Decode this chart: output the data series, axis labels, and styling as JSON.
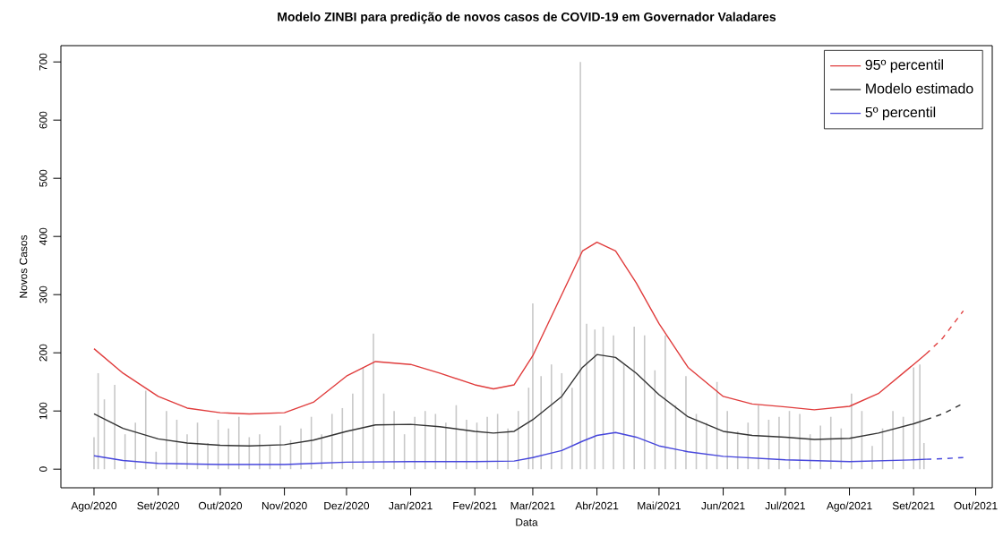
{
  "chart_data": {
    "type": "line",
    "title": "Modelo ZINBI para predição de novos casos de COVID-19 em Governador Valadares",
    "xlabel": "Data",
    "ylabel": "Novos Casos",
    "xlim": [
      "2020-07-16",
      "2021-10-09"
    ],
    "ylim": [
      -32,
      728
    ],
    "xticks": [
      {
        "value": "2020-08-01",
        "label": "Ago/2020"
      },
      {
        "value": "2020-09-01",
        "label": "Set/2020"
      },
      {
        "value": "2020-10-01",
        "label": "Out/2020"
      },
      {
        "value": "2020-11-01",
        "label": "Nov/2020"
      },
      {
        "value": "2020-12-01",
        "label": "Dez/2020"
      },
      {
        "value": "2021-01-01",
        "label": "Jan/2021"
      },
      {
        "value": "2021-02-01",
        "label": "Fev/2021"
      },
      {
        "value": "2021-03-01",
        "label": "Mar/2021"
      },
      {
        "value": "2021-04-01",
        "label": "Abr/2021"
      },
      {
        "value": "2021-05-01",
        "label": "Mai/2021"
      },
      {
        "value": "2021-06-01",
        "label": "Jun/2021"
      },
      {
        "value": "2021-07-01",
        "label": "Jul/2021"
      },
      {
        "value": "2021-08-01",
        "label": "Ago/2021"
      },
      {
        "value": "2021-09-01",
        "label": "Set/2021"
      },
      {
        "value": "2021-10-01",
        "label": "Out/2021"
      }
    ],
    "yticks": [
      0,
      100,
      200,
      300,
      400,
      500,
      600,
      700
    ],
    "grid": false,
    "legend": "top right",
    "series": [
      {
        "type": "bar",
        "color": "#c8c8c8",
        "x": [
          "2020-08-01",
          "2020-08-03",
          "2020-08-06",
          "2020-08-11",
          "2020-08-16",
          "2020-08-21",
          "2020-08-26",
          "2020-08-31",
          "2020-09-05",
          "2020-09-10",
          "2020-09-15",
          "2020-09-20",
          "2020-09-25",
          "2020-09-30",
          "2020-10-05",
          "2020-10-10",
          "2020-10-15",
          "2020-10-20",
          "2020-10-25",
          "2020-10-30",
          "2020-11-04",
          "2020-11-09",
          "2020-11-14",
          "2020-11-19",
          "2020-11-24",
          "2020-11-29",
          "2020-12-04",
          "2020-12-09",
          "2020-12-14",
          "2020-12-19",
          "2020-12-24",
          "2020-12-29",
          "2021-01-03",
          "2021-01-08",
          "2021-01-13",
          "2021-01-18",
          "2021-01-23",
          "2021-01-28",
          "2021-02-02",
          "2021-02-07",
          "2021-02-12",
          "2021-02-17",
          "2021-02-22",
          "2021-02-27",
          "2021-03-01",
          "2021-03-05",
          "2021-03-10",
          "2021-03-15",
          "2021-03-20",
          "2021-03-24",
          "2021-03-27",
          "2021-03-31",
          "2021-04-04",
          "2021-04-09",
          "2021-04-14",
          "2021-04-19",
          "2021-04-24",
          "2021-04-29",
          "2021-05-04",
          "2021-05-09",
          "2021-05-14",
          "2021-05-19",
          "2021-05-24",
          "2021-05-29",
          "2021-06-03",
          "2021-06-08",
          "2021-06-13",
          "2021-06-18",
          "2021-06-23",
          "2021-06-28",
          "2021-07-03",
          "2021-07-08",
          "2021-07-13",
          "2021-07-18",
          "2021-07-23",
          "2021-07-28",
          "2021-08-02",
          "2021-08-07",
          "2021-08-12",
          "2021-08-17",
          "2021-08-22",
          "2021-08-27",
          "2021-09-01",
          "2021-09-04",
          "2021-09-06"
        ],
        "values": [
          55,
          165,
          120,
          145,
          60,
          80,
          135,
          30,
          100,
          85,
          60,
          80,
          45,
          85,
          70,
          90,
          55,
          60,
          40,
          75,
          50,
          70,
          90,
          60,
          95,
          105,
          130,
          175,
          233,
          130,
          100,
          60,
          90,
          100,
          95,
          80,
          110,
          85,
          80,
          90,
          95,
          70,
          100,
          140,
          285,
          160,
          180,
          165,
          140,
          700,
          250,
          240,
          245,
          230,
          180,
          245,
          230,
          170,
          230,
          110,
          160,
          95,
          80,
          150,
          100,
          65,
          80,
          110,
          85,
          90,
          100,
          95,
          60,
          75,
          90,
          70,
          130,
          100,
          40,
          70,
          100,
          90,
          175,
          180,
          45
        ]
      },
      {
        "name": "95º percentil",
        "color": "#e03c3c",
        "line_style": "solid",
        "x": [
          "2020-08-01",
          "2020-08-15",
          "2020-09-01",
          "2020-09-15",
          "2020-10-01",
          "2020-10-15",
          "2020-11-01",
          "2020-11-15",
          "2020-12-01",
          "2020-12-15",
          "2021-01-01",
          "2021-01-15",
          "2021-02-01",
          "2021-02-10",
          "2021-02-20",
          "2021-03-01",
          "2021-03-15",
          "2021-03-25",
          "2021-04-01",
          "2021-04-10",
          "2021-04-20",
          "2021-05-01",
          "2021-05-15",
          "2021-06-01",
          "2021-06-15",
          "2021-07-01",
          "2021-07-15",
          "2021-08-01",
          "2021-08-15",
          "2021-09-01",
          "2021-09-07"
        ],
        "values": [
          207,
          165,
          125,
          105,
          97,
          95,
          97,
          115,
          160,
          185,
          180,
          165,
          145,
          138,
          145,
          195,
          300,
          375,
          390,
          375,
          320,
          250,
          175,
          125,
          112,
          107,
          102,
          108,
          130,
          180,
          198
        ]
      },
      {
        "name": "Modelo estimado",
        "color": "#333333",
        "line_style": "solid",
        "x": [
          "2020-08-01",
          "2020-08-15",
          "2020-09-01",
          "2020-09-15",
          "2020-10-01",
          "2020-10-15",
          "2020-11-01",
          "2020-11-15",
          "2020-12-01",
          "2020-12-15",
          "2021-01-01",
          "2021-01-15",
          "2021-02-01",
          "2021-02-10",
          "2021-02-20",
          "2021-03-01",
          "2021-03-15",
          "2021-03-25",
          "2021-04-01",
          "2021-04-10",
          "2021-04-20",
          "2021-05-01",
          "2021-05-15",
          "2021-06-01",
          "2021-06-15",
          "2021-07-01",
          "2021-07-15",
          "2021-08-01",
          "2021-08-15",
          "2021-09-01",
          "2021-09-07"
        ],
        "values": [
          95,
          70,
          52,
          45,
          41,
          40,
          42,
          50,
          65,
          76,
          77,
          73,
          65,
          62,
          65,
          85,
          125,
          175,
          197,
          192,
          165,
          128,
          90,
          65,
          58,
          55,
          51,
          53,
          62,
          78,
          85
        ]
      },
      {
        "name": "5º percentil",
        "color": "#4646dc",
        "line_style": "solid",
        "x": [
          "2020-08-01",
          "2020-08-15",
          "2020-09-01",
          "2020-10-01",
          "2020-11-01",
          "2020-11-15",
          "2020-12-01",
          "2021-01-01",
          "2021-02-01",
          "2021-02-20",
          "2021-03-01",
          "2021-03-15",
          "2021-03-25",
          "2021-04-01",
          "2021-04-10",
          "2021-04-20",
          "2021-05-01",
          "2021-05-15",
          "2021-06-01",
          "2021-07-01",
          "2021-08-01",
          "2021-09-01",
          "2021-09-07"
        ],
        "values": [
          23,
          15,
          10,
          8,
          8,
          10,
          12,
          13,
          13,
          14,
          20,
          32,
          48,
          58,
          63,
          55,
          40,
          30,
          22,
          16,
          13,
          16,
          17
        ]
      },
      {
        "color": "#e03c3c",
        "line_style": "dashed",
        "x": [
          "2021-09-07",
          "2021-09-15",
          "2021-09-25"
        ],
        "values": [
          198,
          225,
          272
        ]
      },
      {
        "color": "#333333",
        "line_style": "dashed",
        "x": [
          "2021-09-07",
          "2021-09-15",
          "2021-09-25"
        ],
        "values": [
          85,
          95,
          113
        ]
      },
      {
        "color": "#4646dc",
        "line_style": "dashed",
        "x": [
          "2021-09-07",
          "2021-09-15",
          "2021-09-25"
        ],
        "values": [
          17,
          18,
          20
        ]
      }
    ]
  }
}
